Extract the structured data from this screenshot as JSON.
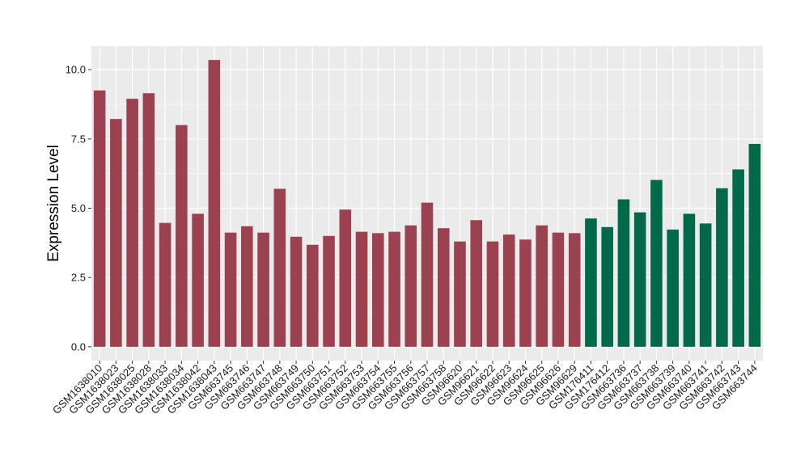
{
  "chart_data": {
    "type": "bar",
    "title": "",
    "xlabel": "",
    "ylabel": "Expression Level",
    "ylim": [
      -0.5,
      10.85
    ],
    "yticks": [
      0.0,
      2.5,
      5.0,
      7.5,
      10.0
    ],
    "ytick_labels": [
      "0.0",
      "2.5",
      "5.0",
      "7.5",
      "10.0"
    ],
    "grid": true,
    "legend": "none",
    "panel_background": "#ebebeb",
    "colors": {
      "group_a": "#9b4150",
      "group_b": "#00694a"
    },
    "categories": [
      "GSM1638010",
      "GSM1638023",
      "GSM1638025",
      "GSM1638028",
      "GSM1638033",
      "GSM1638034",
      "GSM1638042",
      "GSM1638043",
      "GSM663745",
      "GSM663746",
      "GSM663747",
      "GSM663748",
      "GSM663749",
      "GSM663750",
      "GSM663751",
      "GSM663752",
      "GSM663753",
      "GSM663754",
      "GSM663755",
      "GSM663756",
      "GSM663757",
      "GSM663758",
      "GSM96620",
      "GSM96621",
      "GSM96622",
      "GSM96623",
      "GSM96624",
      "GSM96625",
      "GSM96626",
      "GSM96629",
      "GSM176411",
      "GSM176412",
      "GSM663736",
      "GSM663737",
      "GSM663738",
      "GSM663739",
      "GSM663740",
      "GSM663741",
      "GSM663742",
      "GSM663743",
      "GSM663744"
    ],
    "values": [
      9.25,
      8.22,
      8.95,
      9.15,
      4.47,
      8.0,
      4.8,
      10.35,
      4.12,
      4.35,
      4.12,
      5.7,
      3.97,
      3.68,
      4.0,
      4.95,
      4.15,
      4.1,
      4.15,
      4.38,
      5.2,
      4.28,
      3.8,
      4.57,
      3.8,
      4.05,
      3.87,
      4.38,
      4.12,
      4.1,
      4.63,
      4.32,
      5.32,
      4.85,
      6.02,
      4.23,
      4.8,
      4.45,
      5.72,
      6.4,
      7.32
    ],
    "groups": [
      "a",
      "a",
      "a",
      "a",
      "a",
      "a",
      "a",
      "a",
      "a",
      "a",
      "a",
      "a",
      "a",
      "a",
      "a",
      "a",
      "a",
      "a",
      "a",
      "a",
      "a",
      "a",
      "a",
      "a",
      "a",
      "a",
      "a",
      "a",
      "a",
      "a",
      "b",
      "b",
      "b",
      "b",
      "b",
      "b",
      "b",
      "b",
      "b",
      "b",
      "b"
    ]
  }
}
